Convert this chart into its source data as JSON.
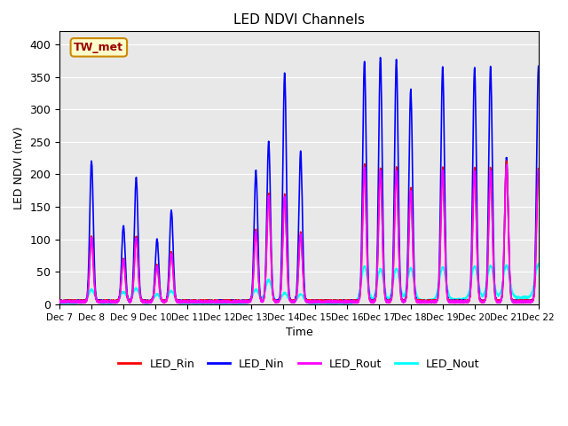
{
  "title": "LED NDVI Channels",
  "xlabel": "Time",
  "ylabel": "LED NDVI (mV)",
  "annotation": "TW_met",
  "ylim": [
    0,
    420
  ],
  "yticks": [
    0,
    50,
    100,
    150,
    200,
    250,
    300,
    350,
    400
  ],
  "x_labels": [
    "Dec 7",
    "Dec 8",
    "Dec 9",
    "Dec 10",
    "Dec 11",
    "Dec 12",
    "Dec 13",
    "Dec 14",
    "Dec 15",
    "Dec 16",
    "Dec 17",
    "Dec 18",
    "Dec 19",
    "Dec 20",
    "Dec 21",
    "Dec 22"
  ],
  "colors": {
    "LED_Rin": "#ff0000",
    "LED_Nin": "#0000ff",
    "LED_Rout": "#ff00ff",
    "LED_Nout": "#00ffff"
  },
  "bg_color": "#e8e8e8",
  "line_width": 1.2,
  "legend_labels": [
    "LED_Rin",
    "LED_Nin",
    "LED_Rout",
    "LED_Nout"
  ]
}
